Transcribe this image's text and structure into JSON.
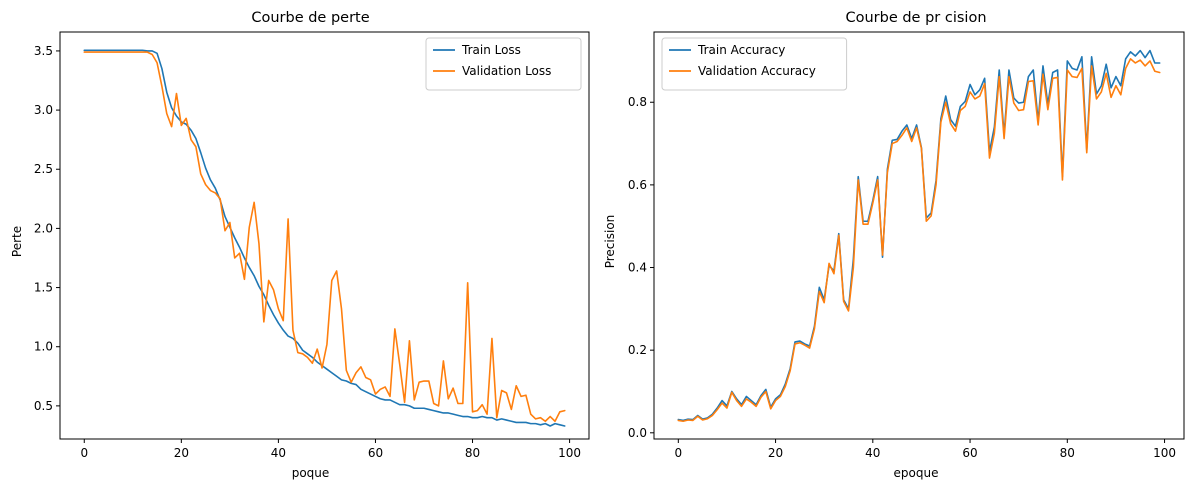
{
  "colors": {
    "train": "#1f77b4",
    "validation": "#ff7f0e"
  },
  "chart_data": [
    {
      "type": "line",
      "title": "Courbe de perte",
      "xlabel": "poque",
      "ylabel": "Perte",
      "xlim": [
        -5,
        104
      ],
      "ylim": [
        0.22,
        3.66
      ],
      "xticks": [
        0,
        20,
        40,
        60,
        80,
        100
      ],
      "xtick_labels": [
        "0",
        "20",
        "40",
        "60",
        "80",
        "100"
      ],
      "yticks": [
        0.5,
        1.0,
        1.5,
        2.0,
        2.5,
        3.0,
        3.5
      ],
      "ytick_labels": [
        "0.5",
        "1.0",
        "1.5",
        "2.0",
        "2.5",
        "3.0",
        "3.5"
      ],
      "legend_position": "top-right",
      "grid": false,
      "series": [
        {
          "name": "Train Loss",
          "color": "#1f77b4",
          "x": [
            0,
            1,
            2,
            3,
            4,
            5,
            6,
            7,
            8,
            9,
            10,
            11,
            12,
            13,
            14,
            15,
            16,
            17,
            18,
            19,
            20,
            21,
            22,
            23,
            24,
            25,
            26,
            27,
            28,
            29,
            30,
            31,
            32,
            33,
            34,
            35,
            36,
            37,
            38,
            39,
            40,
            41,
            42,
            43,
            44,
            45,
            46,
            47,
            48,
            49,
            50,
            51,
            52,
            53,
            54,
            55,
            56,
            57,
            58,
            59,
            60,
            61,
            62,
            63,
            64,
            65,
            66,
            67,
            68,
            69,
            70,
            71,
            72,
            73,
            74,
            75,
            76,
            77,
            78,
            79,
            80,
            81,
            82,
            83,
            84,
            85,
            86,
            87,
            88,
            89,
            90,
            91,
            92,
            93,
            94,
            95,
            96,
            97,
            98,
            99
          ],
          "y": [
            3.505,
            3.505,
            3.505,
            3.505,
            3.505,
            3.505,
            3.505,
            3.505,
            3.505,
            3.505,
            3.505,
            3.505,
            3.505,
            3.5,
            3.5,
            3.48,
            3.35,
            3.15,
            3.02,
            2.95,
            2.9,
            2.88,
            2.83,
            2.76,
            2.64,
            2.51,
            2.41,
            2.34,
            2.24,
            2.1,
            2.01,
            1.92,
            1.84,
            1.75,
            1.67,
            1.6,
            1.51,
            1.44,
            1.35,
            1.27,
            1.2,
            1.14,
            1.09,
            1.07,
            1.03,
            0.97,
            0.94,
            0.91,
            0.87,
            0.84,
            0.81,
            0.78,
            0.75,
            0.72,
            0.71,
            0.69,
            0.68,
            0.64,
            0.62,
            0.6,
            0.58,
            0.56,
            0.55,
            0.55,
            0.53,
            0.51,
            0.51,
            0.5,
            0.48,
            0.48,
            0.48,
            0.47,
            0.46,
            0.45,
            0.44,
            0.44,
            0.43,
            0.42,
            0.41,
            0.41,
            0.4,
            0.4,
            0.41,
            0.4,
            0.4,
            0.38,
            0.39,
            0.38,
            0.37,
            0.36,
            0.36,
            0.36,
            0.35,
            0.35,
            0.34,
            0.35,
            0.33,
            0.35,
            0.34,
            0.33
          ]
        },
        {
          "name": "Validation Loss",
          "color": "#ff7f0e",
          "x": [
            0,
            1,
            2,
            3,
            4,
            5,
            6,
            7,
            8,
            9,
            10,
            11,
            12,
            13,
            14,
            15,
            16,
            17,
            18,
            19,
            20,
            21,
            22,
            23,
            24,
            25,
            26,
            27,
            28,
            29,
            30,
            31,
            32,
            33,
            34,
            35,
            36,
            37,
            38,
            39,
            40,
            41,
            42,
            43,
            44,
            45,
            46,
            47,
            48,
            49,
            50,
            51,
            52,
            53,
            54,
            55,
            56,
            57,
            58,
            59,
            60,
            61,
            62,
            63,
            64,
            65,
            66,
            67,
            68,
            69,
            70,
            71,
            72,
            73,
            74,
            75,
            76,
            77,
            78,
            79,
            80,
            81,
            82,
            83,
            84,
            85,
            86,
            87,
            88,
            89,
            90,
            91,
            92,
            93,
            94,
            95,
            96,
            97,
            98,
            99
          ],
          "y": [
            3.49,
            3.49,
            3.49,
            3.49,
            3.49,
            3.49,
            3.49,
            3.49,
            3.49,
            3.49,
            3.49,
            3.49,
            3.49,
            3.49,
            3.47,
            3.4,
            3.2,
            2.97,
            2.86,
            3.14,
            2.87,
            2.93,
            2.75,
            2.69,
            2.46,
            2.37,
            2.32,
            2.3,
            2.25,
            1.98,
            2.05,
            1.75,
            1.79,
            1.57,
            2.01,
            2.22,
            1.87,
            1.21,
            1.56,
            1.48,
            1.32,
            1.22,
            2.08,
            1.14,
            0.95,
            0.94,
            0.91,
            0.86,
            0.98,
            0.82,
            1.02,
            1.56,
            1.64,
            1.32,
            0.8,
            0.7,
            0.78,
            0.83,
            0.74,
            0.72,
            0.6,
            0.64,
            0.66,
            0.58,
            1.15,
            0.85,
            0.53,
            1.05,
            0.55,
            0.7,
            0.71,
            0.71,
            0.52,
            0.5,
            0.88,
            0.56,
            0.65,
            0.52,
            0.52,
            1.54,
            0.45,
            0.46,
            0.51,
            0.43,
            1.07,
            0.4,
            0.63,
            0.61,
            0.47,
            0.67,
            0.58,
            0.59,
            0.43,
            0.39,
            0.4,
            0.37,
            0.41,
            0.37,
            0.45,
            0.46
          ]
        }
      ]
    },
    {
      "type": "line",
      "title": "Courbe de pr cision",
      "xlabel": "epoque",
      "ylabel": "Precision",
      "xlim": [
        -5,
        104
      ],
      "ylim": [
        -0.015,
        0.97
      ],
      "xticks": [
        0,
        20,
        40,
        60,
        80,
        100
      ],
      "xtick_labels": [
        "0",
        "20",
        "40",
        "60",
        "80",
        "100"
      ],
      "yticks": [
        0.0,
        0.2,
        0.4,
        0.6,
        0.8
      ],
      "ytick_labels": [
        "0.0",
        "0.2",
        "0.4",
        "0.6",
        "0.8"
      ],
      "legend_position": "top-left",
      "grid": false,
      "series": [
        {
          "name": "Train Accuracy",
          "color": "#1f77b4",
          "x": [
            0,
            1,
            2,
            3,
            4,
            5,
            6,
            7,
            8,
            9,
            10,
            11,
            12,
            13,
            14,
            15,
            16,
            17,
            18,
            19,
            20,
            21,
            22,
            23,
            24,
            25,
            26,
            27,
            28,
            29,
            30,
            31,
            32,
            33,
            34,
            35,
            36,
            37,
            38,
            39,
            40,
            41,
            42,
            43,
            44,
            45,
            46,
            47,
            48,
            49,
            50,
            51,
            52,
            53,
            54,
            55,
            56,
            57,
            58,
            59,
            60,
            61,
            62,
            63,
            64,
            65,
            66,
            67,
            68,
            69,
            70,
            71,
            72,
            73,
            74,
            75,
            76,
            77,
            78,
            79,
            80,
            81,
            82,
            83,
            84,
            85,
            86,
            87,
            88,
            89,
            90,
            91,
            92,
            93,
            94,
            95,
            96,
            97,
            98,
            99
          ],
          "y": [
            0.032,
            0.03,
            0.033,
            0.032,
            0.042,
            0.033,
            0.036,
            0.045,
            0.06,
            0.078,
            0.065,
            0.1,
            0.082,
            0.068,
            0.088,
            0.078,
            0.068,
            0.09,
            0.105,
            0.062,
            0.082,
            0.092,
            0.118,
            0.155,
            0.22,
            0.222,
            0.215,
            0.21,
            0.258,
            0.352,
            0.322,
            0.405,
            0.392,
            0.482,
            0.322,
            0.3,
            0.42,
            0.62,
            0.512,
            0.512,
            0.562,
            0.62,
            0.425,
            0.638,
            0.708,
            0.71,
            0.73,
            0.745,
            0.712,
            0.745,
            0.69,
            0.52,
            0.532,
            0.61,
            0.76,
            0.815,
            0.758,
            0.742,
            0.79,
            0.802,
            0.843,
            0.818,
            0.83,
            0.858,
            0.68,
            0.74,
            0.878,
            0.722,
            0.878,
            0.81,
            0.798,
            0.8,
            0.862,
            0.878,
            0.755,
            0.888,
            0.795,
            0.872,
            0.878,
            0.62,
            0.9,
            0.882,
            0.878,
            0.91,
            0.685,
            0.91,
            0.82,
            0.84,
            0.892,
            0.835,
            0.862,
            0.84,
            0.905,
            0.922,
            0.912,
            0.925,
            0.908,
            0.925,
            0.895,
            0.895
          ]
        },
        {
          "name": "Validation Accuracy",
          "color": "#ff7f0e",
          "x": [
            0,
            1,
            2,
            3,
            4,
            5,
            6,
            7,
            8,
            9,
            10,
            11,
            12,
            13,
            14,
            15,
            16,
            17,
            18,
            19,
            20,
            21,
            22,
            23,
            24,
            25,
            26,
            27,
            28,
            29,
            30,
            31,
            32,
            33,
            34,
            35,
            36,
            37,
            38,
            39,
            40,
            41,
            42,
            43,
            44,
            45,
            46,
            47,
            48,
            49,
            50,
            51,
            52,
            53,
            54,
            55,
            56,
            57,
            58,
            59,
            60,
            61,
            62,
            63,
            64,
            65,
            66,
            67,
            68,
            69,
            70,
            71,
            72,
            73,
            74,
            75,
            76,
            77,
            78,
            79,
            80,
            81,
            82,
            83,
            84,
            85,
            86,
            87,
            88,
            89,
            90,
            91,
            92,
            93,
            94,
            95,
            96,
            97,
            98,
            99
          ],
          "y": [
            0.03,
            0.028,
            0.031,
            0.03,
            0.04,
            0.031,
            0.034,
            0.042,
            0.056,
            0.072,
            0.06,
            0.098,
            0.078,
            0.064,
            0.082,
            0.074,
            0.064,
            0.086,
            0.1,
            0.058,
            0.078,
            0.088,
            0.112,
            0.15,
            0.215,
            0.218,
            0.212,
            0.205,
            0.252,
            0.342,
            0.315,
            0.41,
            0.385,
            0.478,
            0.318,
            0.295,
            0.4,
            0.612,
            0.505,
            0.505,
            0.556,
            0.612,
            0.43,
            0.63,
            0.7,
            0.705,
            0.72,
            0.738,
            0.705,
            0.738,
            0.688,
            0.512,
            0.525,
            0.6,
            0.752,
            0.8,
            0.748,
            0.73,
            0.78,
            0.79,
            0.825,
            0.808,
            0.815,
            0.845,
            0.665,
            0.725,
            0.862,
            0.712,
            0.862,
            0.798,
            0.78,
            0.782,
            0.85,
            0.852,
            0.745,
            0.868,
            0.782,
            0.858,
            0.86,
            0.612,
            0.878,
            0.862,
            0.86,
            0.882,
            0.678,
            0.888,
            0.808,
            0.825,
            0.87,
            0.812,
            0.84,
            0.818,
            0.882,
            0.905,
            0.895,
            0.902,
            0.888,
            0.9,
            0.875,
            0.872
          ]
        }
      ]
    }
  ]
}
